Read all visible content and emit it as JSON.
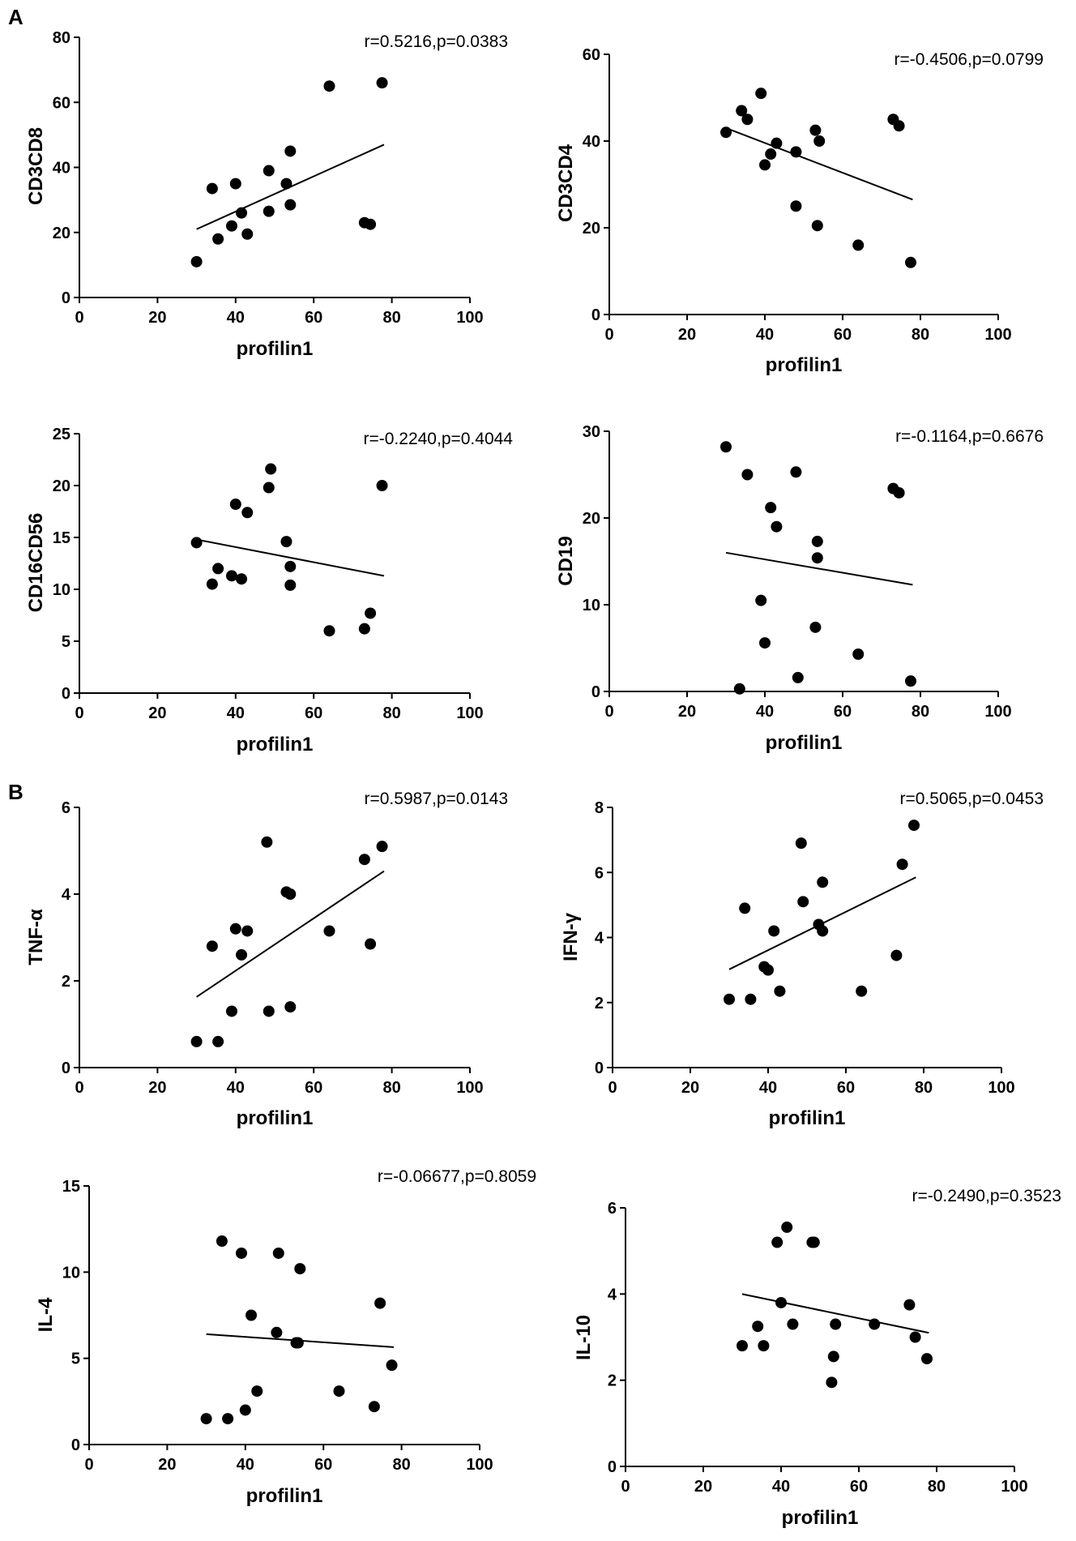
{
  "panels": {
    "A": "A",
    "B": "B"
  },
  "chart_data": [
    {
      "type": "scatter",
      "xlabel": "profilin1",
      "ylabel": "CD3CD8",
      "stat": "r=0.5216,p=0.0383",
      "xlim": [
        0,
        100
      ],
      "ylim": [
        0,
        80
      ],
      "xticks": [
        0,
        20,
        40,
        60,
        80,
        100
      ],
      "yticks": [
        0,
        20,
        40,
        60,
        80
      ],
      "points": [
        [
          30,
          11
        ],
        [
          34,
          33.5
        ],
        [
          35.5,
          18
        ],
        [
          39,
          22
        ],
        [
          40,
          35
        ],
        [
          41.5,
          26
        ],
        [
          43,
          19.5
        ],
        [
          48.5,
          26.5
        ],
        [
          48.5,
          39
        ],
        [
          53,
          35
        ],
        [
          54,
          28.5
        ],
        [
          54,
          45
        ],
        [
          64,
          65
        ],
        [
          73,
          23
        ],
        [
          74.5,
          22.5
        ],
        [
          77.5,
          66
        ]
      ],
      "fit": [
        [
          30,
          21
        ],
        [
          78,
          47
        ]
      ]
    },
    {
      "type": "scatter",
      "xlabel": "profilin1",
      "ylabel": "CD3CD4",
      "stat": "r=-0.4506,p=0.0799",
      "xlim": [
        0,
        100
      ],
      "ylim": [
        0,
        60
      ],
      "xticks": [
        0,
        20,
        40,
        60,
        80,
        100
      ],
      "yticks": [
        0,
        20,
        40,
        60
      ],
      "points": [
        [
          30,
          42
        ],
        [
          34,
          47
        ],
        [
          35.5,
          45
        ],
        [
          39,
          51
        ],
        [
          40,
          34.5
        ],
        [
          41.5,
          37
        ],
        [
          43,
          39.5
        ],
        [
          48,
          37.5
        ],
        [
          48,
          25
        ],
        [
          53,
          42.5
        ],
        [
          54,
          40
        ],
        [
          53.5,
          20.5
        ],
        [
          64,
          16
        ],
        [
          73,
          45
        ],
        [
          74.5,
          43.5
        ],
        [
          77.5,
          12
        ]
      ],
      "fit": [
        [
          30,
          43
        ],
        [
          78,
          26.5
        ]
      ]
    },
    {
      "type": "scatter",
      "xlabel": "profilin1",
      "ylabel": "CD16CD56",
      "stat": "r=-0.2240,p=0.4044",
      "xlim": [
        0,
        100
      ],
      "ylim": [
        0,
        25
      ],
      "xticks": [
        0,
        20,
        40,
        60,
        80,
        100
      ],
      "yticks": [
        0,
        5,
        10,
        15,
        20,
        25
      ],
      "points": [
        [
          30,
          14.5
        ],
        [
          34,
          10.5
        ],
        [
          35.5,
          12
        ],
        [
          39,
          11.3
        ],
        [
          40,
          18.2
        ],
        [
          41.5,
          11
        ],
        [
          43,
          17.4
        ],
        [
          48.5,
          19.8
        ],
        [
          49,
          21.6
        ],
        [
          53,
          14.6
        ],
        [
          54,
          12.2
        ],
        [
          54,
          10.4
        ],
        [
          64,
          6
        ],
        [
          73,
          6.2
        ],
        [
          74.5,
          7.7
        ],
        [
          77.5,
          20
        ]
      ],
      "fit": [
        [
          30,
          14.8
        ],
        [
          78,
          11.3
        ]
      ]
    },
    {
      "type": "scatter",
      "xlabel": "profilin1",
      "ylabel": "CD19",
      "stat": "r=-0.1164,p=0.6676",
      "xlim": [
        0,
        100
      ],
      "ylim": [
        0,
        30
      ],
      "xticks": [
        0,
        20,
        40,
        60,
        80,
        100
      ],
      "yticks": [
        0,
        10,
        20,
        30
      ],
      "points": [
        [
          30,
          28.2
        ],
        [
          33.5,
          0.3
        ],
        [
          35.5,
          25
        ],
        [
          39,
          10.5
        ],
        [
          40,
          5.6
        ],
        [
          41.5,
          21.2
        ],
        [
          43,
          19
        ],
        [
          48,
          25.3
        ],
        [
          48.5,
          1.6
        ],
        [
          53,
          7.4
        ],
        [
          53.5,
          17.3
        ],
        [
          53.5,
          15.4
        ],
        [
          64,
          4.3
        ],
        [
          73,
          23.4
        ],
        [
          74.5,
          22.9
        ],
        [
          77.5,
          1.2
        ]
      ],
      "fit": [
        [
          30,
          16
        ],
        [
          78,
          12.3
        ]
      ]
    },
    {
      "type": "scatter",
      "xlabel": "profilin1",
      "ylabel": "TNF-α",
      "stat": "r=0.5987,p=0.0143",
      "xlim": [
        0,
        100
      ],
      "ylim": [
        0,
        6
      ],
      "xticks": [
        0,
        20,
        40,
        60,
        80,
        100
      ],
      "yticks": [
        0,
        2,
        4,
        6
      ],
      "points": [
        [
          30,
          0.6
        ],
        [
          34,
          2.8
        ],
        [
          35.5,
          0.6
        ],
        [
          39,
          1.3
        ],
        [
          40,
          3.2
        ],
        [
          41.5,
          2.6
        ],
        [
          43,
          3.15
        ],
        [
          48,
          5.2
        ],
        [
          48.5,
          1.3
        ],
        [
          53,
          4.05
        ],
        [
          54,
          4
        ],
        [
          54,
          1.4
        ],
        [
          64,
          3.15
        ],
        [
          73,
          4.8
        ],
        [
          74.5,
          2.85
        ],
        [
          77.5,
          5.1
        ]
      ],
      "fit": [
        [
          30,
          1.63
        ],
        [
          78,
          4.53
        ]
      ]
    },
    {
      "type": "scatter",
      "xlabel": "profilin1",
      "ylabel": "IFN-γ",
      "stat": "r=0.5065,p=0.0453",
      "xlim": [
        0,
        100
      ],
      "ylim": [
        0,
        8
      ],
      "xticks": [
        0,
        20,
        40,
        60,
        80,
        100
      ],
      "yticks": [
        0,
        2,
        4,
        6,
        8
      ],
      "points": [
        [
          30,
          2.1
        ],
        [
          34,
          4.9
        ],
        [
          35.5,
          2.1
        ],
        [
          39,
          3.1
        ],
        [
          40,
          3
        ],
        [
          41.5,
          4.2
        ],
        [
          43,
          2.35
        ],
        [
          48.5,
          6.9
        ],
        [
          49,
          5.1
        ],
        [
          53,
          4.4
        ],
        [
          54,
          5.7
        ],
        [
          54,
          4.2
        ],
        [
          64,
          2.35
        ],
        [
          73,
          3.45
        ],
        [
          74.5,
          6.25
        ],
        [
          77.5,
          7.45
        ]
      ],
      "fit": [
        [
          30,
          3.02
        ],
        [
          78,
          5.85
        ]
      ]
    },
    {
      "type": "scatter",
      "xlabel": "profilin1",
      "ylabel": "IL-4",
      "stat": "r=-0.06677,p=0.8059",
      "xlim": [
        0,
        100
      ],
      "ylim": [
        0,
        15
      ],
      "xticks": [
        0,
        20,
        40,
        60,
        80,
        100
      ],
      "yticks": [
        0,
        5,
        10,
        15
      ],
      "points": [
        [
          30,
          1.5
        ],
        [
          34,
          11.8
        ],
        [
          35.5,
          1.5
        ],
        [
          39,
          11.1
        ],
        [
          40,
          2
        ],
        [
          41.5,
          7.5
        ],
        [
          43,
          3.1
        ],
        [
          48,
          6.5
        ],
        [
          48.5,
          11.1
        ],
        [
          53,
          5.9
        ],
        [
          53.5,
          5.9
        ],
        [
          54,
          10.2
        ],
        [
          64,
          3.1
        ],
        [
          73,
          2.2
        ],
        [
          74.5,
          8.2
        ],
        [
          77.5,
          4.6
        ]
      ],
      "fit": [
        [
          30,
          6.4
        ],
        [
          78,
          5.65
        ]
      ]
    },
    {
      "type": "scatter",
      "xlabel": "profilin1",
      "ylabel": "IL-10",
      "stat": "r=-0.2490,p=0.3523",
      "xlim": [
        0,
        100
      ],
      "ylim": [
        0,
        6
      ],
      "xticks": [
        0,
        20,
        40,
        60,
        80,
        100
      ],
      "yticks": [
        0,
        2,
        4,
        6
      ],
      "points": [
        [
          30,
          2.8
        ],
        [
          34,
          3.25
        ],
        [
          35.5,
          2.8
        ],
        [
          39,
          5.2
        ],
        [
          40,
          3.8
        ],
        [
          41.5,
          5.55
        ],
        [
          43,
          3.3
        ],
        [
          48,
          5.2
        ],
        [
          48.5,
          5.2
        ],
        [
          53,
          1.95
        ],
        [
          53.5,
          2.55
        ],
        [
          54,
          3.3
        ],
        [
          64,
          3.3
        ],
        [
          73,
          3.75
        ],
        [
          74.5,
          3
        ],
        [
          77.5,
          2.5
        ]
      ],
      "fit": [
        [
          30,
          4
        ],
        [
          78,
          3.1
        ]
      ]
    }
  ]
}
